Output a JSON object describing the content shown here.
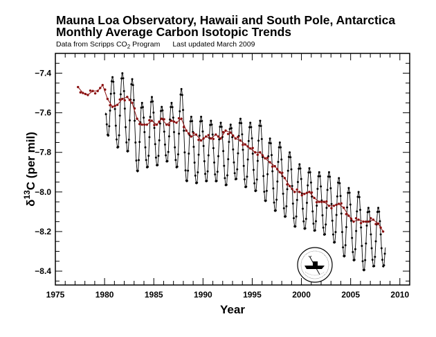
{
  "chart_data": {
    "type": "line",
    "title": "Mauna Loa Observatory, Hawaii and South Pole, Antarctica",
    "title2": "Monthly Average Carbon Isotopic Trends",
    "subtitle_source_prefix": "Data from Scripps CO",
    "subtitle_source_sub": "2",
    "subtitle_source_suffix": " Program",
    "subtitle_updated": "Last updated March 2009",
    "xlabel": "Year",
    "ylabel_delta": "δ",
    "ylabel_sup": "13",
    "ylabel_rest": "C (per mil)",
    "xlim": [
      1975,
      2011
    ],
    "ylim": [
      -8.47,
      -7.3
    ],
    "xticks": [
      1975,
      1980,
      1985,
      1990,
      1995,
      2000,
      2005,
      2010
    ],
    "xtick_labels": [
      "1975",
      "1980",
      "1985",
      "1990",
      "1995",
      "2000",
      "2005",
      "2010"
    ],
    "yticks": [
      -7.4,
      -7.6,
      -7.8,
      -8.0,
      -8.2,
      -8.4
    ],
    "ytick_labels": [
      "-7.4",
      "-7.6",
      "-7.8",
      "-8.0",
      "-8.2",
      "-8.4"
    ],
    "grid": false,
    "series": [
      {
        "name": "Mauna Loa, Hawaii",
        "color": "#000000",
        "note": "seasonal extremes per year: [year, trough, peak]",
        "extremes": [
          [
            1980,
            -7.72,
            -7.42
          ],
          [
            1981,
            -7.78,
            -7.4
          ],
          [
            1982,
            -7.8,
            -7.43
          ],
          [
            1983,
            -7.9,
            -7.55
          ],
          [
            1984,
            -7.88,
            -7.52
          ],
          [
            1985,
            -7.87,
            -7.57
          ],
          [
            1986,
            -7.85,
            -7.55
          ],
          [
            1987,
            -7.88,
            -7.48
          ],
          [
            1988,
            -7.95,
            -7.62
          ],
          [
            1989,
            -7.96,
            -7.62
          ],
          [
            1990,
            -7.95,
            -7.64
          ],
          [
            1991,
            -7.95,
            -7.65
          ],
          [
            1992,
            -7.97,
            -7.66
          ],
          [
            1993,
            -7.94,
            -7.63
          ],
          [
            1994,
            -7.98,
            -7.65
          ],
          [
            1995,
            -8.0,
            -7.64
          ],
          [
            1996,
            -8.05,
            -7.73
          ],
          [
            1997,
            -8.1,
            -7.75
          ],
          [
            1998,
            -8.13,
            -7.8
          ],
          [
            1999,
            -8.18,
            -7.86
          ],
          [
            2000,
            -8.19,
            -7.88
          ],
          [
            2001,
            -8.2,
            -7.9
          ],
          [
            2002,
            -8.22,
            -7.9
          ],
          [
            2003,
            -8.26,
            -7.93
          ],
          [
            2004,
            -8.33,
            -7.98
          ],
          [
            2005,
            -8.35,
            -8.0
          ],
          [
            2006,
            -8.4,
            -8.08
          ],
          [
            2007,
            -8.38,
            -8.08
          ],
          [
            2008,
            -8.38,
            -8.28
          ]
        ],
        "start": [
          1980.1,
          -7.6
        ]
      },
      {
        "name": "South Pole, Antarctica",
        "color": "#8b1010",
        "x": [
          1977.3,
          1977.8,
          1978.3,
          1978.8,
          1979.3,
          1979.8,
          1980.3,
          1980.8,
          1981.3,
          1981.8,
          1982.3,
          1982.8,
          1983.3,
          1983.8,
          1984.3,
          1984.8,
          1985.3,
          1985.8,
          1986.3,
          1986.8,
          1987.3,
          1987.8,
          1988.3,
          1988.8,
          1989.3,
          1989.8,
          1990.3,
          1990.8,
          1991.3,
          1991.8,
          1992.3,
          1992.8,
          1993.3,
          1993.8,
          1994.3,
          1994.8,
          1995.3,
          1995.8,
          1996.3,
          1996.8,
          1997.3,
          1997.8,
          1998.3,
          1998.8,
          1999.3,
          1999.8,
          2000.3,
          2000.8,
          2001.3,
          2001.8,
          2002.3,
          2002.8,
          2003.3,
          2003.8,
          2004.3,
          2004.8,
          2005.3,
          2005.8,
          2006.3,
          2006.8,
          2007.3,
          2007.8,
          2008.3
        ],
        "y": [
          -7.47,
          -7.5,
          -7.51,
          -7.49,
          -7.49,
          -7.46,
          -7.53,
          -7.57,
          -7.56,
          -7.53,
          -7.52,
          -7.55,
          -7.63,
          -7.66,
          -7.66,
          -7.64,
          -7.66,
          -7.63,
          -7.66,
          -7.64,
          -7.65,
          -7.63,
          -7.69,
          -7.72,
          -7.71,
          -7.74,
          -7.72,
          -7.73,
          -7.71,
          -7.73,
          -7.69,
          -7.7,
          -7.73,
          -7.74,
          -7.76,
          -7.78,
          -7.8,
          -7.8,
          -7.83,
          -7.85,
          -7.87,
          -7.9,
          -7.93,
          -7.97,
          -8.0,
          -8.0,
          -8.01,
          -8.0,
          -8.03,
          -8.05,
          -8.05,
          -8.07,
          -8.07,
          -8.06,
          -8.08,
          -8.12,
          -8.15,
          -8.14,
          -8.15,
          -8.15,
          -8.14,
          -8.16,
          -8.2
        ]
      }
    ]
  }
}
